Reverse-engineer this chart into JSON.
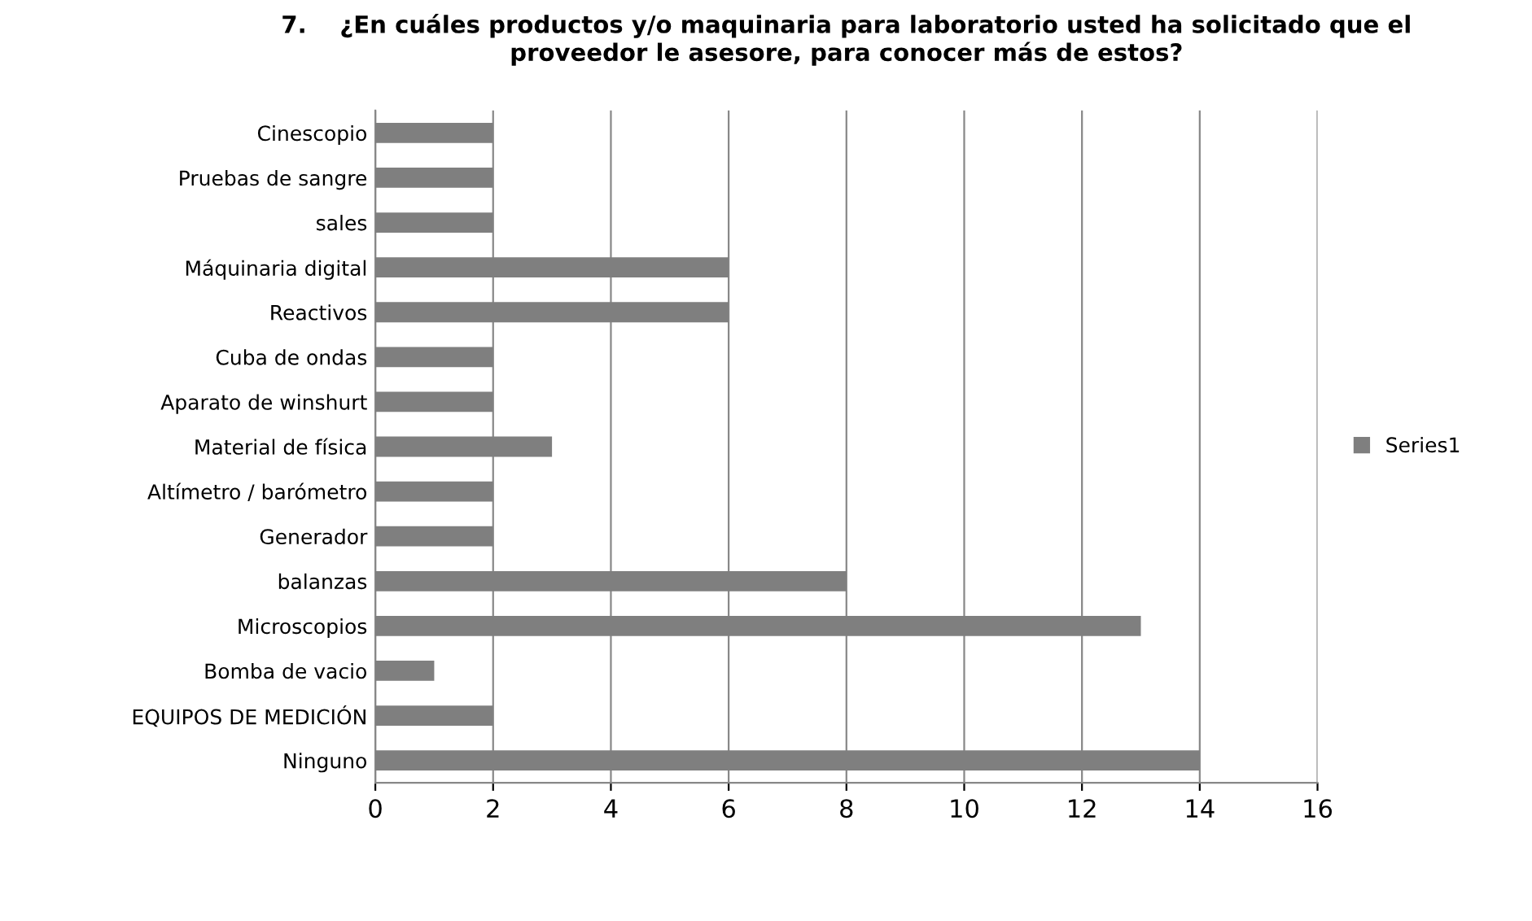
{
  "chart_data": {
    "type": "bar",
    "orientation": "horizontal",
    "title": "7.    ¿En cuáles productos y/o maquinaria para laboratorio usted ha solicitado que el\nproveedor le asesore, para conocer más de estos?",
    "categories": [
      "Cinescopio",
      "Pruebas de sangre",
      "sales",
      "Máquinaria digital",
      "Reactivos",
      "Cuba de ondas",
      "Aparato de winshurt",
      "Material de física",
      "Altímetro / barómetro",
      "Generador",
      "balanzas",
      "Microscopios",
      "Bomba de vacio",
      "EQUIPOS DE MEDICIÓN",
      "Ninguno"
    ],
    "series": [
      {
        "name": "Series1",
        "color": "#7f7f7f",
        "values": [
          2,
          2,
          2,
          6,
          6,
          2,
          2,
          3,
          2,
          2,
          8,
          13,
          1,
          2,
          14
        ]
      }
    ],
    "xlim": [
      0,
      16
    ],
    "xticks": [
      0,
      2,
      4,
      6,
      8,
      10,
      12,
      14,
      16
    ],
    "grid": "x",
    "legend": "right"
  }
}
